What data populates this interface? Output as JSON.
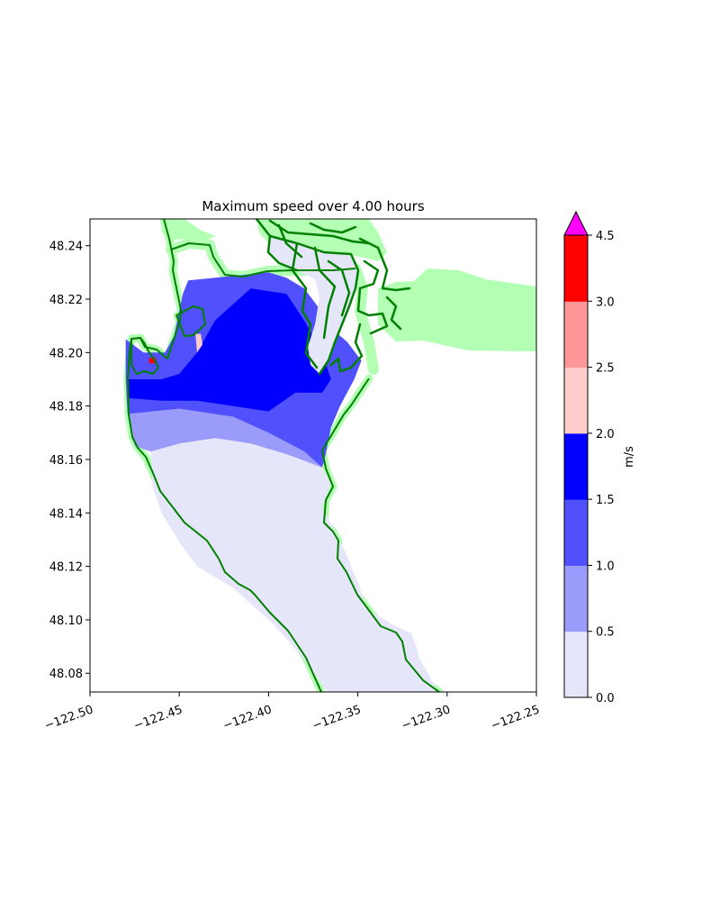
{
  "chart_data": {
    "type": "heatmap",
    "title": "Maximum speed over 4.00 hours",
    "xlabel": "",
    "ylabel": "",
    "xlim": [
      -122.5,
      -122.25
    ],
    "ylim": [
      48.073,
      48.25
    ],
    "xticks": [
      -122.5,
      -122.45,
      -122.4,
      -122.35,
      -122.3,
      -122.25
    ],
    "xtick_labels": [
      "−122.50",
      "−122.45",
      "−122.40",
      "−122.35",
      "−122.30",
      "−122.25"
    ],
    "yticks": [
      48.08,
      48.1,
      48.12,
      48.14,
      48.16,
      48.18,
      48.2,
      48.22,
      48.24
    ],
    "ytick_labels": [
      "48.08",
      "48.10",
      "48.12",
      "48.14",
      "48.16",
      "48.18",
      "48.20",
      "48.22",
      "48.24"
    ],
    "grid": false,
    "colorbar": {
      "label": "m/s",
      "levels": [
        0.0,
        0.5,
        1.0,
        1.5,
        2.0,
        2.5,
        3.0,
        4.5
      ],
      "tick_labels": [
        "0.0",
        "0.5",
        "1.0",
        "1.5",
        "2.0",
        "2.5",
        "3.0",
        "4.5"
      ],
      "colors": [
        "#e6e6fa",
        "#9b9bfb",
        "#5050fd",
        "#0000ff",
        "#ffcccc",
        "#ff9999",
        "#ff0000"
      ],
      "extend_color": "#ff00ff",
      "extend": "max"
    },
    "colors": {
      "land_buffer": "#b3ffb3",
      "shoreline": "#008000"
    },
    "regions": [
      {
        "name": "low-speed-0-0.5",
        "level": 0,
        "polygon": [
          [
            -122.466,
            48.163
          ],
          [
            -122.45,
            48.166
          ],
          [
            -122.43,
            48.168
          ],
          [
            -122.41,
            48.166
          ],
          [
            -122.39,
            48.162
          ],
          [
            -122.37,
            48.157
          ],
          [
            -122.365,
            48.151
          ],
          [
            -122.37,
            48.142
          ],
          [
            -122.362,
            48.132
          ],
          [
            -122.356,
            48.124
          ],
          [
            -122.35,
            48.114
          ],
          [
            -122.345,
            48.104
          ],
          [
            -122.33,
            48.098
          ],
          [
            -122.32,
            48.095
          ],
          [
            -122.315,
            48.085
          ],
          [
            -122.31,
            48.079
          ],
          [
            -122.305,
            48.073
          ],
          [
            -122.367,
            48.073
          ],
          [
            -122.38,
            48.085
          ],
          [
            -122.39,
            48.093
          ],
          [
            -122.4,
            48.1
          ],
          [
            -122.42,
            48.112
          ],
          [
            -122.44,
            48.12
          ],
          [
            -122.45,
            48.129
          ],
          [
            -122.46,
            48.14
          ],
          [
            -122.465,
            48.15
          ],
          [
            -122.466,
            48.163
          ]
        ]
      },
      {
        "name": "speed-0.5-1.0",
        "level": 1,
        "polygon": [
          [
            -122.479,
            48.177
          ],
          [
            -122.45,
            48.179
          ],
          [
            -122.42,
            48.176
          ],
          [
            -122.4,
            48.17
          ],
          [
            -122.38,
            48.163
          ],
          [
            -122.37,
            48.157
          ],
          [
            -122.39,
            48.162
          ],
          [
            -122.41,
            48.166
          ],
          [
            -122.43,
            48.168
          ],
          [
            -122.45,
            48.166
          ],
          [
            -122.466,
            48.163
          ],
          [
            -122.475,
            48.165
          ],
          [
            -122.479,
            48.177
          ]
        ]
      },
      {
        "name": "speed-1.0-1.5",
        "level": 2,
        "polygon": [
          [
            -122.48,
            48.205
          ],
          [
            -122.47,
            48.2
          ],
          [
            -122.458,
            48.2
          ],
          [
            -122.453,
            48.206
          ],
          [
            -122.448,
            48.222
          ],
          [
            -122.445,
            48.227
          ],
          [
            -122.4,
            48.23
          ],
          [
            -122.39,
            48.228
          ],
          [
            -122.38,
            48.224
          ],
          [
            -122.37,
            48.215
          ],
          [
            -122.363,
            48.208
          ],
          [
            -122.356,
            48.204
          ],
          [
            -122.348,
            48.197
          ],
          [
            -122.352,
            48.19
          ],
          [
            -122.36,
            48.18
          ],
          [
            -122.365,
            48.172
          ],
          [
            -122.368,
            48.162
          ],
          [
            -122.37,
            48.157
          ],
          [
            -122.38,
            48.163
          ],
          [
            -122.4,
            48.17
          ],
          [
            -122.42,
            48.176
          ],
          [
            -122.45,
            48.179
          ],
          [
            -122.479,
            48.177
          ],
          [
            -122.48,
            48.19
          ],
          [
            -122.48,
            48.205
          ]
        ]
      },
      {
        "name": "speed-1.5-2.0",
        "level": 3,
        "polygon": [
          [
            -122.479,
            48.19
          ],
          [
            -122.46,
            48.19
          ],
          [
            -122.45,
            48.192
          ],
          [
            -122.44,
            48.2
          ],
          [
            -122.43,
            48.212
          ],
          [
            -122.41,
            48.224
          ],
          [
            -122.39,
            48.222
          ],
          [
            -122.38,
            48.212
          ],
          [
            -122.37,
            48.2
          ],
          [
            -122.365,
            48.19
          ],
          [
            -122.37,
            48.185
          ],
          [
            -122.385,
            48.185
          ],
          [
            -122.4,
            48.178
          ],
          [
            -122.42,
            48.18
          ],
          [
            -122.44,
            48.182
          ],
          [
            -122.46,
            48.182
          ],
          [
            -122.479,
            48.183
          ],
          [
            -122.479,
            48.19
          ]
        ]
      },
      {
        "name": "speed-2.0-2.5",
        "level": 4,
        "polygon": [
          [
            -122.441,
            48.207
          ],
          [
            -122.438,
            48.207
          ],
          [
            -122.437,
            48.203
          ],
          [
            -122.44,
            48.2
          ],
          [
            -122.441,
            48.207
          ]
        ]
      },
      {
        "name": "speed-3.0-4.5",
        "level": 6,
        "polygon": [
          [
            -122.467,
            48.198
          ],
          [
            -122.463,
            48.198
          ],
          [
            -122.463,
            48.196
          ],
          [
            -122.467,
            48.196
          ],
          [
            -122.467,
            48.198
          ]
        ]
      }
    ]
  }
}
